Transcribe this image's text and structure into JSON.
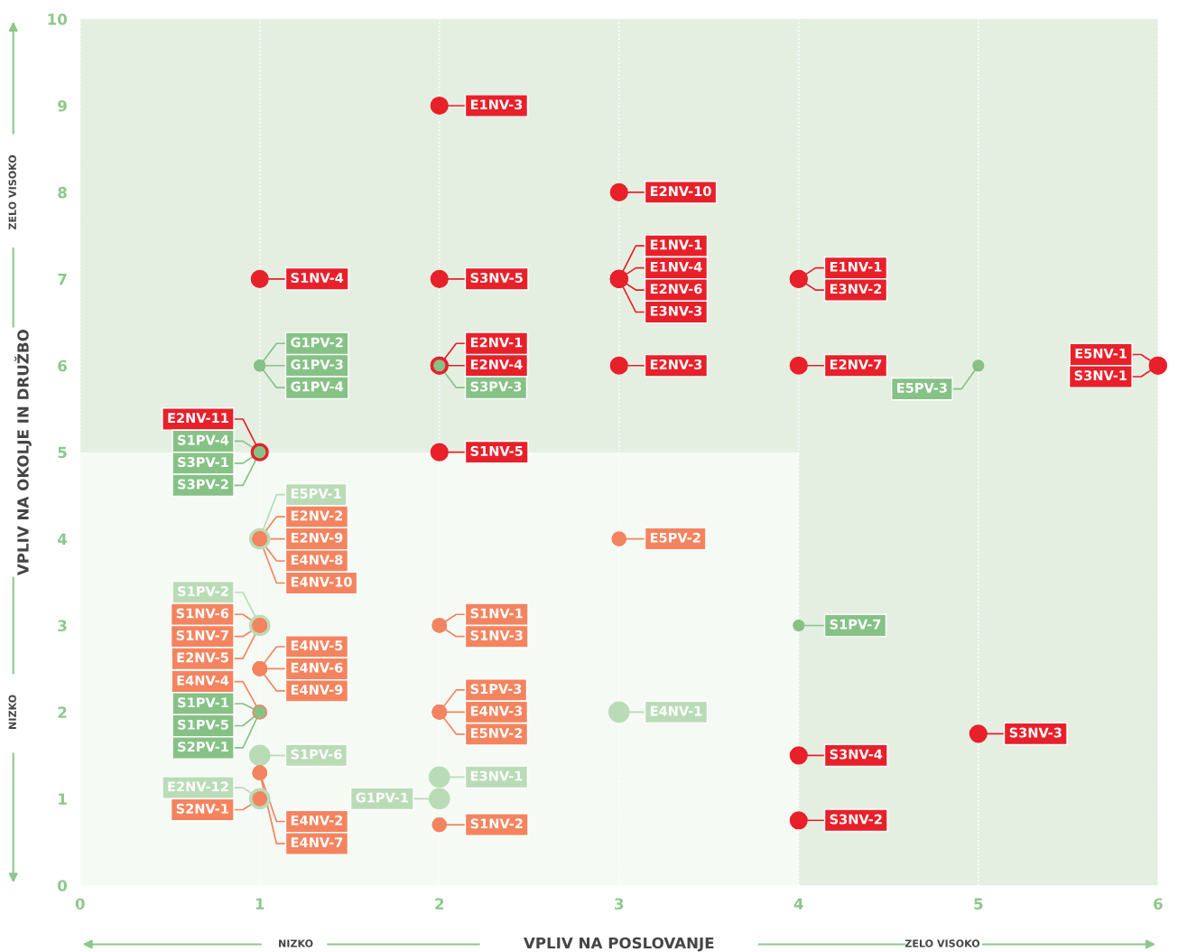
{
  "chart_data": {
    "type": "scatter",
    "xlabel": "VPLIV NA POSLOVANJE",
    "ylabel": "VPLIV NA OKOLJE IN DRUŽBO",
    "xlim": [
      0,
      6
    ],
    "ylim": [
      0,
      10
    ],
    "xticks": [
      0,
      1,
      2,
      3,
      4,
      5,
      6
    ],
    "yticks": [
      0,
      1,
      2,
      3,
      4,
      5,
      6,
      7,
      8,
      9,
      10
    ],
    "grid": "x",
    "marker": "circle",
    "bands": [
      {
        "axis": "y",
        "from": 5,
        "to": 10,
        "color": "#e4efe2"
      },
      {
        "axis": "x",
        "from": 4,
        "to": 6,
        "color": "#e4efe2"
      }
    ],
    "annotations": [
      "NIZKO",
      "ZELO VISOKO",
      "NIZKO",
      "ZELO VISOKO"
    ],
    "series": [
      {
        "color": "#b9dcb7",
        "x": [
          1,
          1,
          1,
          2,
          2,
          3,
          1
        ],
        "values": [
          4,
          3,
          1.5,
          1.25,
          1,
          2,
          1
        ],
        "value_labels": [
          "E5PV-1",
          "S1PV-2",
          "S1PV-6",
          "E3NV-1",
          "G1PV-1",
          "E4NV-1",
          "E2NV-12"
        ]
      },
      {
        "color": "#e8202a",
        "x": [
          2,
          3,
          1,
          2,
          3,
          3,
          3,
          3,
          4,
          4,
          2,
          2,
          3,
          4,
          6,
          6,
          2,
          1,
          4,
          4,
          5
        ],
        "values": [
          9,
          8,
          7,
          7,
          7,
          7,
          7,
          7,
          7,
          7,
          6,
          6,
          6,
          6,
          6,
          6,
          5,
          5,
          1.5,
          0.75,
          1.75
        ],
        "value_labels": [
          "E1NV-3",
          "E2NV-10",
          "S1NV-4",
          "S3NV-5",
          "E1NV-1",
          "E1NV-4",
          "E2NV-6",
          "E3NV-3",
          "E1NV-1",
          "E3NV-2",
          "E2NV-1",
          "E2NV-4",
          "E2NV-3",
          "E2NV-7",
          "E5NV-1",
          "S3NV-1",
          "S1NV-5",
          "E2NV-11",
          "S3NV-4",
          "S3NV-2",
          "S3NV-3"
        ]
      },
      {
        "color": "#f4845f",
        "x": [
          1,
          1,
          1,
          1,
          1,
          1,
          1,
          1,
          1,
          1,
          1,
          2,
          2,
          2,
          2,
          2,
          3,
          1,
          1,
          1,
          2
        ],
        "values": [
          4,
          4,
          4,
          4,
          3,
          3,
          3,
          2.5,
          2.5,
          2.5,
          2,
          3,
          3,
          2,
          2,
          2,
          4,
          1.3,
          1.3,
          1,
          0.7
        ],
        "value_labels": [
          "E2NV-2",
          "E2NV-9",
          "E4NV-8",
          "E4NV-10",
          "S1NV-6",
          "S1NV-7",
          "E2NV-5",
          "E4NV-5",
          "E4NV-6",
          "E4NV-9",
          "E4NV-4",
          "S1NV-1",
          "S1NV-3",
          "S1PV-3",
          "E4NV-3",
          "E5NV-2",
          "E5PV-2",
          "E4NV-2",
          "E4NV-7",
          "S2NV-1",
          "S1NV-2"
        ]
      },
      {
        "color": "#86c286",
        "x": [
          1,
          1,
          1,
          1,
          1,
          1,
          2,
          5,
          4,
          1,
          1,
          1
        ],
        "values": [
          6,
          6,
          6,
          5,
          5,
          5,
          6,
          6,
          3,
          2,
          2,
          2
        ],
        "value_labels": [
          "G1PV-2",
          "G1PV-3",
          "G1PV-4",
          "S1PV-4",
          "S3PV-1",
          "S3PV-2",
          "S3PV-3",
          "E5PV-3",
          "S1PV-7",
          "S1PV-1",
          "S1PV-5",
          "S2PV-1"
        ]
      }
    ]
  }
}
